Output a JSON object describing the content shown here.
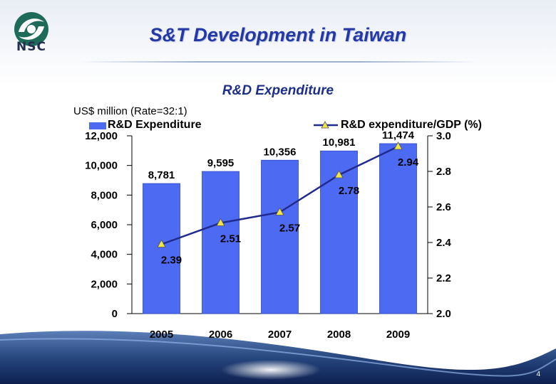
{
  "header": {
    "logo_text": "NSC",
    "title": "S&T Development in Taiwan",
    "subtitle": "R&D Expenditure"
  },
  "footer": {
    "page_number": "4"
  },
  "colors": {
    "bar": "#4d6bf2",
    "line": "#1f2a8c",
    "marker": "#f0e64a",
    "title": "#2438a8"
  },
  "chart_data": {
    "type": "bar",
    "unit_label": "US$ million (Rate=32:1)",
    "categories": [
      "2005",
      "2006",
      "2007",
      "2008",
      "2009"
    ],
    "series": [
      {
        "name": "R&D Expenditure",
        "type": "bar",
        "axis": "left",
        "values": [
          8781,
          9595,
          10356,
          10981,
          11474
        ],
        "labels": [
          "8,781",
          "9,595",
          "10,356",
          "10,981",
          "11,474"
        ]
      },
      {
        "name": "R&D expenditure/GDP (%)",
        "type": "line",
        "axis": "right",
        "values": [
          2.39,
          2.51,
          2.57,
          2.78,
          2.94
        ],
        "labels": [
          "2.39",
          "2.51",
          "2.57",
          "2.78",
          "2.94"
        ]
      }
    ],
    "y_left": {
      "min": 0,
      "max": 12000,
      "ticks": [
        "0",
        "2,000",
        "4,000",
        "6,000",
        "8,000",
        "10,000",
        "12,000"
      ]
    },
    "y_right": {
      "min": 2.0,
      "max": 3.0,
      "ticks": [
        "2.0",
        "2.2",
        "2.4",
        "2.6",
        "2.8",
        "3.0"
      ]
    },
    "legend": "top",
    "grid": false
  }
}
